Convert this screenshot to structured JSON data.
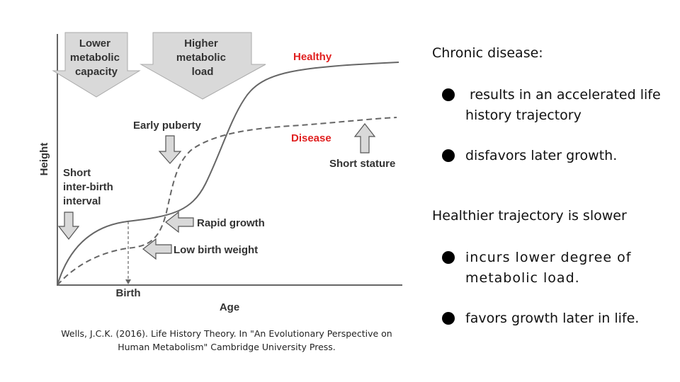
{
  "figure": {
    "y_axis_label": "Height",
    "x_axis_label": "Age",
    "arrow_lower_metabolic": [
      "Lower",
      "metabolic",
      "capacity"
    ],
    "arrow_higher_metabolic": [
      "Higher",
      "metabolic",
      "load"
    ],
    "healthy_label": "Healthy",
    "disease_label": "Disease",
    "early_puberty": "Early puberty",
    "short_stature": "Short stature",
    "short_interval": [
      "Short",
      "inter-birth",
      "interval"
    ],
    "rapid_growth": "Rapid growth",
    "low_birth_weight": "Low birth weight",
    "birth": "Birth",
    "colors": {
      "healthy": "#e02020",
      "disease": "#e02020",
      "arrow_fill": "#d9d9d9",
      "line": "#666666"
    }
  },
  "citation": {
    "line1": "Wells, J.C.K. (2016). Life History Theory. In \"An Evolutionary Perspective on",
    "line2": "Human Metabolism\" Cambridge University Press."
  },
  "panel": {
    "chronic_heading": "Chronic disease:",
    "chronic_bullets": [
      " results in an accelerated life history trajectory",
      "disfavors later growth."
    ],
    "healthier_heading": "Healthier trajectory is slower",
    "healthier_bullets": [
      "incurs lower degree of metabolic load.",
      "favors growth later in life."
    ]
  }
}
